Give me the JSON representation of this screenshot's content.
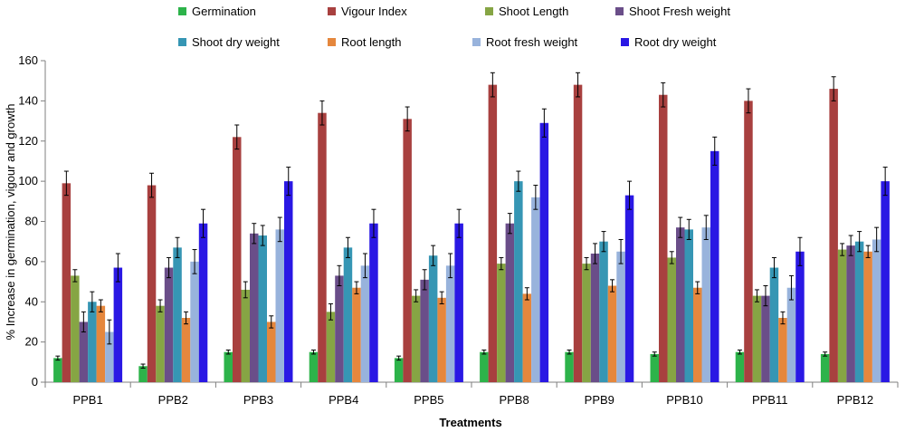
{
  "chart_data": {
    "type": "bar",
    "title": "",
    "xlabel": "Treatments",
    "ylabel": "% Increase in germination, vigour and growth",
    "ylim": [
      0,
      160
    ],
    "yticks": [
      0,
      20,
      40,
      60,
      80,
      100,
      120,
      140,
      160
    ],
    "grid": false,
    "legend_position": "top",
    "categories": [
      "PPB1",
      "PPB2",
      "PPB3",
      "PPB4",
      "PPB5",
      "PPB8",
      "PPB9",
      "PPB10",
      "PPB11",
      "PPB12"
    ],
    "series": [
      {
        "name": "Germination",
        "color": "#2db34a",
        "values": [
          12,
          8,
          15,
          15,
          12,
          15,
          15,
          14,
          15,
          14
        ],
        "errors": [
          1,
          1,
          1,
          1,
          1,
          1,
          1,
          1,
          1,
          1
        ]
      },
      {
        "name": "Vigour Index",
        "color": "#a8403f",
        "values": [
          99,
          98,
          122,
          134,
          131,
          148,
          148,
          143,
          140,
          146
        ],
        "errors": [
          6,
          6,
          6,
          6,
          6,
          6,
          6,
          6,
          6,
          6
        ]
      },
      {
        "name": "Shoot Length",
        "color": "#86a544",
        "values": [
          53,
          38,
          46,
          35,
          43,
          59,
          59,
          62,
          43,
          66
        ],
        "errors": [
          3,
          3,
          4,
          4,
          3,
          3,
          3,
          3,
          3,
          3
        ]
      },
      {
        "name": "Shoot Fresh weight",
        "color": "#6a4e89",
        "values": [
          30,
          57,
          74,
          53,
          51,
          79,
          64,
          77,
          43,
          68
        ],
        "errors": [
          5,
          5,
          5,
          5,
          5,
          5,
          5,
          5,
          5,
          5
        ]
      },
      {
        "name": "Shoot dry weight",
        "color": "#3696b4",
        "values": [
          40,
          67,
          73,
          67,
          63,
          100,
          70,
          76,
          57,
          70
        ],
        "errors": [
          5,
          5,
          5,
          5,
          5,
          5,
          5,
          5,
          5,
          5
        ]
      },
      {
        "name": "Root length",
        "color": "#e5873d",
        "values": [
          38,
          32,
          30,
          47,
          42,
          44,
          48,
          47,
          32,
          65
        ],
        "errors": [
          3,
          3,
          3,
          3,
          3,
          3,
          3,
          3,
          3,
          3
        ]
      },
      {
        "name": "Root fresh weight",
        "color": "#98b3dc",
        "values": [
          25,
          60,
          76,
          58,
          58,
          92,
          65,
          77,
          47,
          71
        ],
        "errors": [
          6,
          6,
          6,
          6,
          6,
          6,
          6,
          6,
          6,
          6
        ]
      },
      {
        "name": "Root dry weight",
        "color": "#2a18e4",
        "values": [
          57,
          79,
          100,
          79,
          79,
          129,
          93,
          115,
          65,
          100
        ],
        "errors": [
          7,
          7,
          7,
          7,
          7,
          7,
          7,
          7,
          7,
          7
        ]
      }
    ]
  }
}
